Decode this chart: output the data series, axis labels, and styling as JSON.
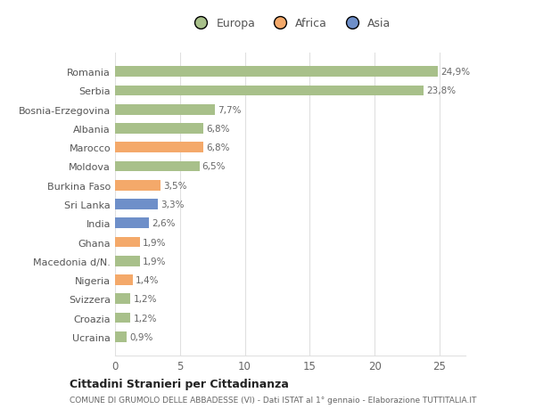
{
  "categories": [
    "Ucraina",
    "Croazia",
    "Svizzera",
    "Nigeria",
    "Macedonia d/N.",
    "Ghana",
    "India",
    "Sri Lanka",
    "Burkina Faso",
    "Moldova",
    "Marocco",
    "Albania",
    "Bosnia-Erzegovina",
    "Serbia",
    "Romania"
  ],
  "values": [
    0.9,
    1.2,
    1.2,
    1.4,
    1.9,
    1.9,
    2.6,
    3.3,
    3.5,
    6.5,
    6.8,
    6.8,
    7.7,
    23.8,
    24.9
  ],
  "colors": [
    "#a8c08a",
    "#a8c08a",
    "#a8c08a",
    "#f4a96a",
    "#a8c08a",
    "#f4a96a",
    "#6e8fc9",
    "#6e8fc9",
    "#f4a96a",
    "#a8c08a",
    "#f4a96a",
    "#a8c08a",
    "#a8c08a",
    "#a8c08a",
    "#a8c08a"
  ],
  "labels": [
    "0,9%",
    "1,2%",
    "1,2%",
    "1,4%",
    "1,9%",
    "1,9%",
    "2,6%",
    "3,3%",
    "3,5%",
    "6,5%",
    "6,8%",
    "6,8%",
    "7,7%",
    "23,8%",
    "24,9%"
  ],
  "legend_labels": [
    "Europa",
    "Africa",
    "Asia"
  ],
  "legend_colors": [
    "#a8c08a",
    "#f4a96a",
    "#6e8fc9"
  ],
  "xlim": [
    0,
    27
  ],
  "xticks": [
    0,
    5,
    10,
    15,
    20,
    25
  ],
  "title": "Cittadini Stranieri per Cittadinanza",
  "subtitle": "COMUNE DI GRUMOLO DELLE ABBADESSE (VI) - Dati ISTAT al 1° gennaio - Elaborazione TUTTITALIA.IT",
  "bg_color": "#ffffff",
  "bar_height": 0.55,
  "grid_color": "#e0e0e0"
}
